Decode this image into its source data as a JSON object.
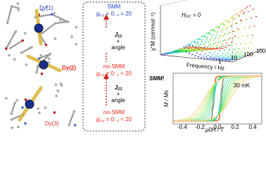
{
  "molecule": {
    "labels": [
      "Dy(1)",
      "Dy(2)",
      "Dy(3)"
    ]
  },
  "scheme": {
    "states": [
      {
        "title": "SMM",
        "g": "g",
        "sub1": "x,y",
        "rel1": " = 0; ",
        "sub2": "z",
        "rel2": " = 20"
      },
      {
        "title": "no-SMM",
        "g": "g",
        "sub1": "x,y",
        "rel1": " ≠ 0; ",
        "sub2": "z",
        "rel2": " < 20"
      },
      {
        "title": "no-SMM",
        "g": "g",
        "sub1": "x,y",
        "rel1": " = 0; ",
        "sub2": "z",
        "rel2": " < 20"
      }
    ],
    "couplings": [
      {
        "j": "J",
        "sub": "12",
        "plus": "+",
        "angle": "angle"
      },
      {
        "j": "J",
        "sub": "23",
        "plus": "+",
        "angle": "angle"
      }
    ]
  },
  "ac_plot": {
    "field": "H",
    "field_sub": "DC",
    "field_rel": " = 0",
    "y_label": "χ''M (cm³mol⁻¹)",
    "x_label": "Frequency / Hz",
    "x_ticks": [
      "1",
      "10",
      "100",
      "1000"
    ]
  },
  "hysteresis": {
    "tag": "SMM!",
    "temp": "30 mK",
    "y_label": "M / Ms",
    "x_label": "μ0H / T",
    "x_ticks": [
      "-0.4",
      "-0.2",
      "0.0",
      "0.2",
      "0.4"
    ]
  }
}
